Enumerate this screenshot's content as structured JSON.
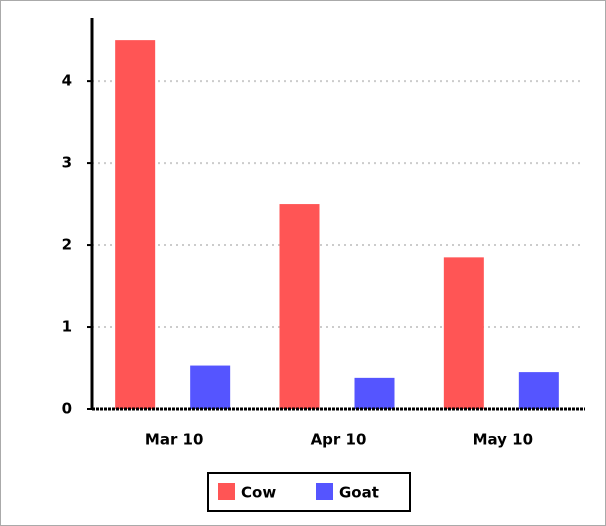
{
  "chart_data": {
    "type": "bar",
    "categories": [
      "Mar 10",
      "Apr 10",
      "May 10"
    ],
    "series": [
      {
        "name": "Cow",
        "color": "#ff5555",
        "values": [
          4.5,
          2.5,
          1.85
        ]
      },
      {
        "name": "Goat",
        "color": "#5555ff",
        "values": [
          0.53,
          0.38,
          0.45
        ]
      }
    ],
    "ylim": [
      0,
      4.77
    ],
    "yticks": [
      0,
      1,
      2,
      3,
      4
    ],
    "grid": true,
    "legend": "bottom"
  }
}
